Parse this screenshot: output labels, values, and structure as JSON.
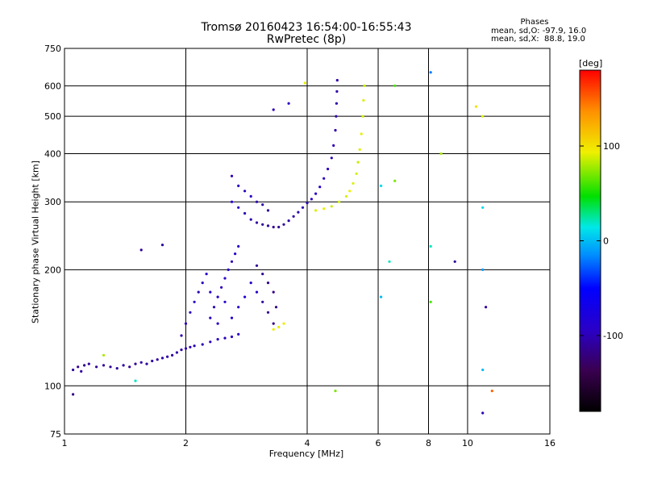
{
  "chart_data": {
    "type": "scatter",
    "title": "Tromsø 20160423 16:54:00-16:55:43",
    "subtitle": "RwPretec (8p)",
    "xlabel": "Frequency [MHz]",
    "ylabel": "Stationary phase Virtual Height [km]",
    "x_scale": "log2",
    "y_scale": "log",
    "xlim": [
      1,
      16
    ],
    "ylim": [
      75,
      750
    ],
    "x_ticks": [
      1,
      2,
      4,
      6,
      8,
      10,
      16
    ],
    "y_ticks": [
      75,
      100,
      200,
      300,
      400,
      500,
      600,
      750
    ],
    "grid": true,
    "stats": {
      "heading": "Phases",
      "line_o": "mean, sd,O: -97.9, 16.0",
      "line_x": "mean, sd,X:  88.8, 19.0"
    },
    "colorbar": {
      "label": "[deg]",
      "range": [
        -180,
        180
      ],
      "ticks": [
        -100,
        0,
        100
      ],
      "colorscale": [
        "#000000",
        "#3a0050",
        "#2a00c8",
        "#0000ff",
        "#0090ff",
        "#00e8e8",
        "#00e000",
        "#f0f000",
        "#ff9000",
        "#ff0000"
      ]
    },
    "series": [
      {
        "trace": "lower",
        "points": [
          [
            1.05,
            110,
            -110
          ],
          [
            1.08,
            112,
            -112
          ],
          [
            1.1,
            109,
            -108
          ],
          [
            1.12,
            113,
            -115
          ],
          [
            1.15,
            114,
            -110
          ],
          [
            1.2,
            112,
            -112
          ],
          [
            1.25,
            113,
            -108
          ],
          [
            1.3,
            112,
            -110
          ],
          [
            1.35,
            111,
            -112
          ],
          [
            1.4,
            113,
            -108
          ],
          [
            1.45,
            112,
            -110
          ],
          [
            1.5,
            114,
            -112
          ],
          [
            1.55,
            115,
            -105
          ],
          [
            1.6,
            114,
            -110
          ],
          [
            1.65,
            116,
            -108
          ],
          [
            1.7,
            117,
            -110
          ],
          [
            1.75,
            118,
            -106
          ],
          [
            1.8,
            119,
            -105
          ],
          [
            1.85,
            120,
            -108
          ],
          [
            1.9,
            122,
            -104
          ],
          [
            1.95,
            124,
            -106
          ],
          [
            2.0,
            125,
            -102
          ],
          [
            2.05,
            126,
            -100
          ],
          [
            2.1,
            127,
            -104
          ],
          [
            2.2,
            128,
            -100
          ],
          [
            2.3,
            130,
            -98
          ],
          [
            2.4,
            132,
            -96
          ],
          [
            2.5,
            133,
            -100
          ],
          [
            2.6,
            134,
            -96
          ],
          [
            2.7,
            136,
            -98
          ],
          [
            1.95,
            135,
            -104
          ],
          [
            2.0,
            145,
            -100
          ],
          [
            2.05,
            155,
            -98
          ],
          [
            2.1,
            165,
            -96
          ],
          [
            2.15,
            175,
            -100
          ],
          [
            2.2,
            185,
            -98
          ],
          [
            2.25,
            195,
            -94
          ],
          [
            2.3,
            150,
            -96
          ],
          [
            2.35,
            160,
            -100
          ],
          [
            2.4,
            170,
            -92
          ],
          [
            2.45,
            180,
            -98
          ],
          [
            2.5,
            190,
            -94
          ],
          [
            2.55,
            200,
            -96
          ],
          [
            2.6,
            210,
            -100
          ],
          [
            2.65,
            220,
            -92
          ],
          [
            2.7,
            230,
            -96
          ],
          [
            2.3,
            175,
            -90
          ],
          [
            2.4,
            145,
            -94
          ],
          [
            2.5,
            165,
            -92
          ],
          [
            2.6,
            150,
            -88
          ],
          [
            2.7,
            160,
            -90
          ],
          [
            2.8,
            170,
            -86
          ],
          [
            2.9,
            185,
            -92
          ],
          [
            3.0,
            175,
            -90
          ],
          [
            3.1,
            165,
            -110
          ],
          [
            3.2,
            155,
            -115
          ],
          [
            3.3,
            145,
            -118
          ],
          [
            3.35,
            160,
            -120
          ],
          [
            3.3,
            175,
            -118
          ],
          [
            3.2,
            185,
            -116
          ],
          [
            3.1,
            195,
            -114
          ],
          [
            3.0,
            205,
            -112
          ]
        ]
      },
      {
        "trace": "o-trace",
        "points": [
          [
            2.6,
            300,
            -92
          ],
          [
            2.7,
            290,
            -94
          ],
          [
            2.8,
            280,
            -100
          ],
          [
            2.9,
            270,
            -104
          ],
          [
            3.0,
            265,
            -108
          ],
          [
            3.1,
            262,
            -110
          ],
          [
            3.2,
            260,
            -112
          ],
          [
            3.3,
            258,
            -114
          ],
          [
            3.4,
            258,
            -112
          ],
          [
            3.5,
            262,
            -110
          ],
          [
            3.6,
            268,
            -108
          ],
          [
            3.7,
            275,
            -106
          ],
          [
            3.8,
            282,
            -104
          ],
          [
            3.9,
            290,
            -100
          ],
          [
            4.0,
            298,
            -98
          ],
          [
            4.1,
            305,
            -96
          ],
          [
            4.2,
            315,
            -94
          ],
          [
            4.3,
            328,
            -94
          ],
          [
            4.4,
            345,
            -96
          ],
          [
            4.5,
            365,
            -98
          ],
          [
            4.6,
            390,
            -100
          ],
          [
            4.65,
            420,
            -102
          ],
          [
            4.7,
            460,
            -104
          ],
          [
            4.72,
            500,
            -106
          ],
          [
            4.73,
            540,
            -104
          ],
          [
            4.74,
            580,
            -106
          ],
          [
            4.75,
            620,
            -106
          ],
          [
            2.6,
            350,
            -100
          ],
          [
            2.7,
            330,
            -98
          ],
          [
            2.8,
            320,
            -96
          ],
          [
            2.9,
            310,
            -94
          ],
          [
            3.0,
            300,
            -104
          ],
          [
            3.1,
            295,
            -108
          ],
          [
            3.2,
            285,
            -112
          ]
        ]
      },
      {
        "trace": "x-trace",
        "points": [
          [
            4.2,
            285,
            90
          ],
          [
            4.4,
            288,
            92
          ],
          [
            4.6,
            292,
            86
          ],
          [
            4.8,
            300,
            88
          ],
          [
            5.0,
            310,
            90
          ],
          [
            5.1,
            320,
            94
          ],
          [
            5.2,
            335,
            90
          ],
          [
            5.3,
            355,
            88
          ],
          [
            5.35,
            380,
            86
          ],
          [
            5.4,
            410,
            90
          ],
          [
            5.45,
            450,
            92
          ],
          [
            5.5,
            500,
            88
          ],
          [
            5.52,
            550,
            90
          ],
          [
            5.55,
            600,
            86
          ],
          [
            3.3,
            140,
            95
          ],
          [
            3.4,
            142,
            92
          ],
          [
            3.5,
            145,
            96
          ]
        ]
      },
      {
        "trace": "scatter",
        "points": [
          [
            1.05,
            95,
            -120
          ],
          [
            1.25,
            120,
            80
          ],
          [
            1.5,
            103,
            20
          ],
          [
            1.55,
            225,
            -110
          ],
          [
            1.75,
            232,
            -108
          ],
          [
            3.3,
            520,
            -100
          ],
          [
            3.6,
            540,
            -95
          ],
          [
            3.95,
            610,
            90
          ],
          [
            4.7,
            97,
            70
          ],
          [
            6.1,
            330,
            10
          ],
          [
            6.1,
            170,
            0
          ],
          [
            6.4,
            210,
            20
          ],
          [
            6.6,
            600,
            60
          ],
          [
            6.6,
            340,
            70
          ],
          [
            8.1,
            650,
            -20
          ],
          [
            8.1,
            230,
            20
          ],
          [
            8.1,
            165,
            60
          ],
          [
            8.6,
            400,
            80
          ],
          [
            9.3,
            210,
            -110
          ],
          [
            10.5,
            530,
            100
          ],
          [
            10.9,
            500,
            90
          ],
          [
            10.9,
            290,
            10
          ],
          [
            10.9,
            200,
            -10
          ],
          [
            10.9,
            110,
            0
          ],
          [
            10.9,
            85,
            -100
          ],
          [
            11.1,
            160,
            -110
          ],
          [
            11.5,
            97,
            150
          ]
        ]
      }
    ]
  }
}
